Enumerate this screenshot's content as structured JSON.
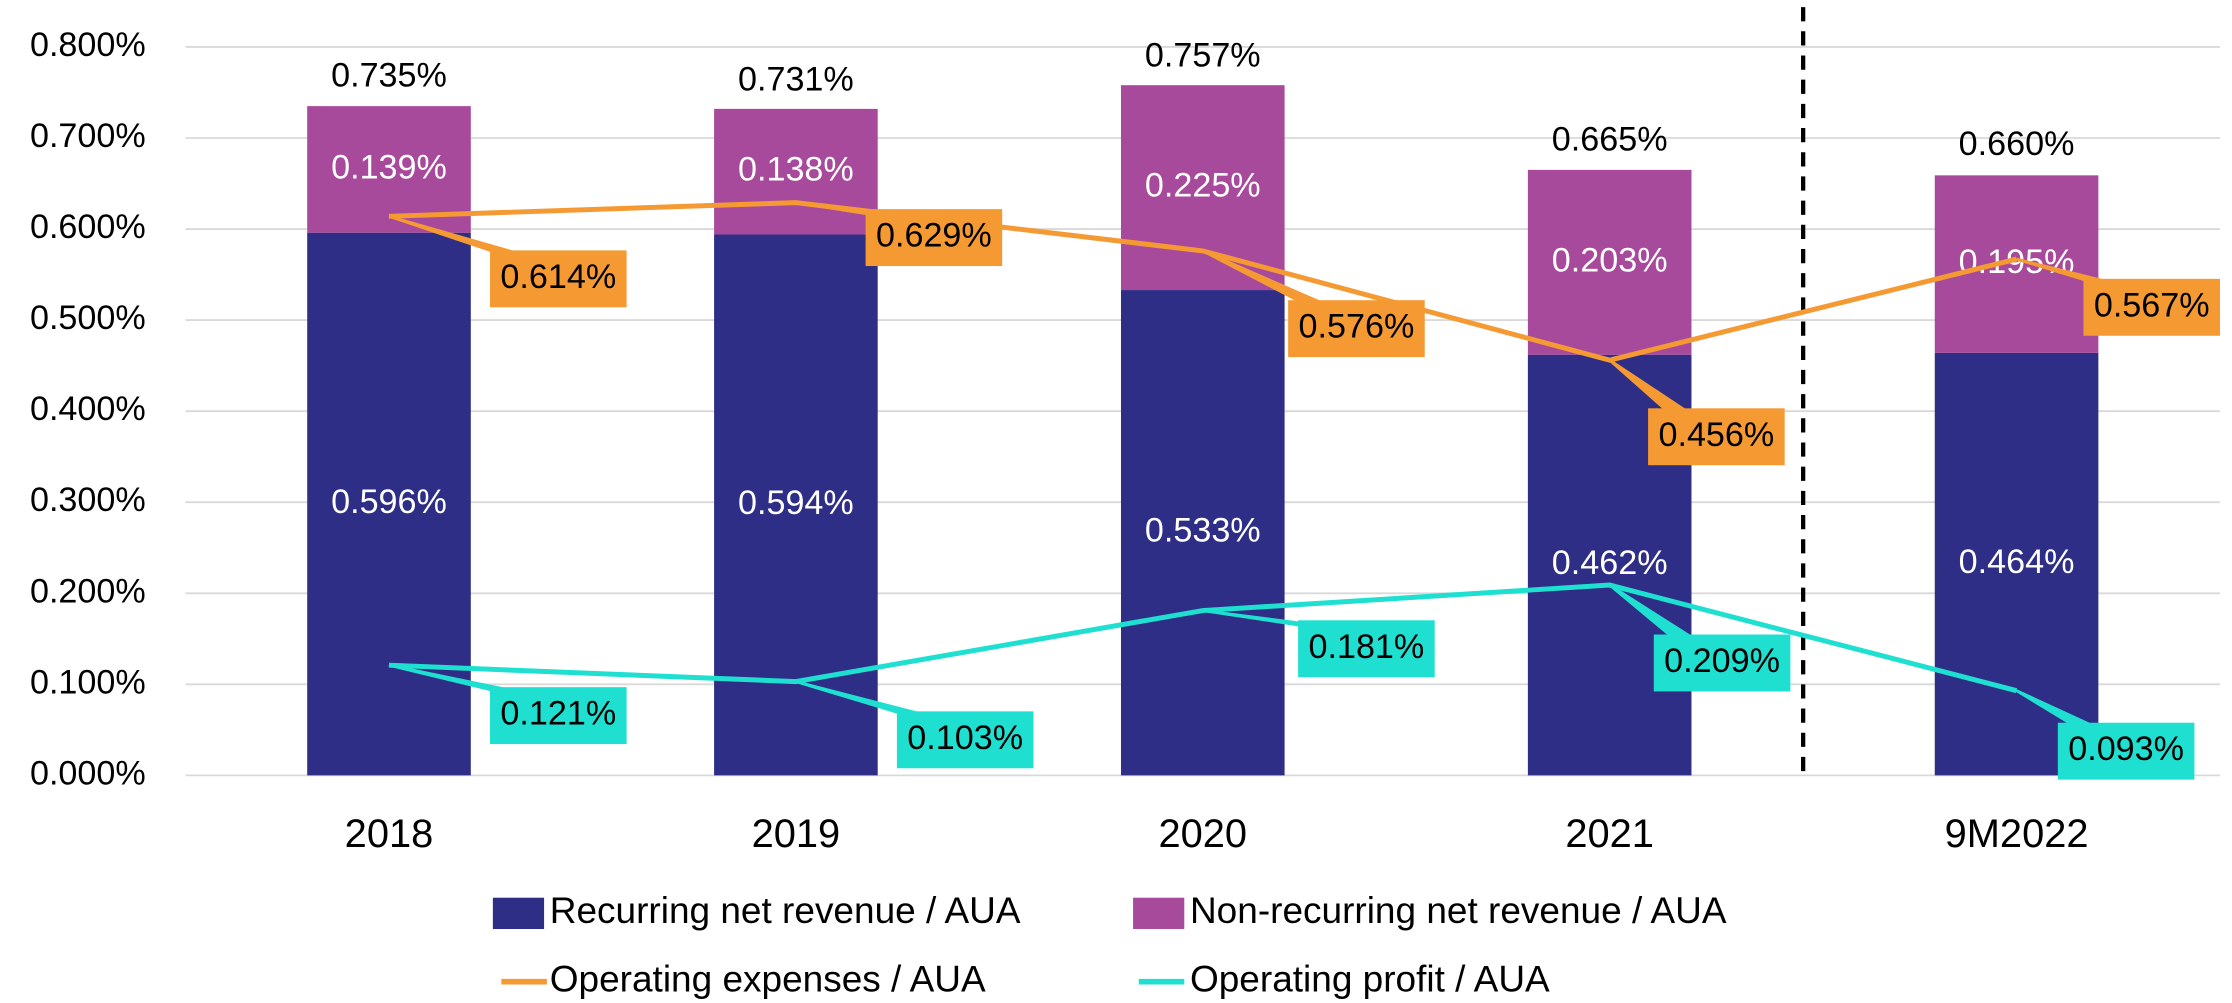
{
  "chart_data": {
    "type": "bar",
    "stacked": true,
    "categories": [
      "2018",
      "2019",
      "2020",
      "2021",
      "9M2022"
    ],
    "ylim": [
      0,
      0.8
    ],
    "yticks": [
      {
        "value": 0,
        "label": "0.000%"
      },
      {
        "value": 0.1,
        "label": "0.100%"
      },
      {
        "value": 0.2,
        "label": "0.200%"
      },
      {
        "value": 0.3,
        "label": "0.300%"
      },
      {
        "value": 0.4,
        "label": "0.400%"
      },
      {
        "value": 0.5,
        "label": "0.500%"
      },
      {
        "value": 0.6,
        "label": "0.600%"
      },
      {
        "value": 0.7,
        "label": "0.700%"
      },
      {
        "value": 0.8,
        "label": "0.800%"
      }
    ],
    "grid": true,
    "series": [
      {
        "name": "Recurring net revenue / AUA",
        "type": "bar",
        "color": "#2e2e87",
        "values": [
          0.596,
          0.594,
          0.533,
          0.462,
          0.464
        ],
        "value_labels": [
          "0.596%",
          "0.594%",
          "0.533%",
          "0.462%",
          "0.464%"
        ]
      },
      {
        "name": "Non-recurring net revenue / AUA",
        "type": "bar",
        "color": "#a84a9b",
        "values": [
          0.139,
          0.138,
          0.225,
          0.203,
          0.195
        ],
        "value_labels": [
          "0.139%",
          "0.138%",
          "0.225%",
          "0.203%",
          "0.195%"
        ]
      },
      {
        "name": "Operating expenses / AUA",
        "type": "line",
        "color": "#f59a33",
        "values": [
          0.614,
          0.629,
          0.576,
          0.456,
          0.567
        ],
        "value_labels": [
          "0.614%",
          "0.629%",
          "0.576%",
          "0.456%",
          "0.567%"
        ]
      },
      {
        "name": "Operating profit / AUA",
        "type": "line",
        "color": "#1fe0d0",
        "values": [
          0.121,
          0.103,
          0.181,
          0.209,
          0.093
        ],
        "value_labels": [
          "0.121%",
          "0.103%",
          "0.181%",
          "0.209%",
          "0.093%"
        ]
      }
    ],
    "totals": {
      "values": [
        0.735,
        0.731,
        0.757,
        0.665,
        0.66
      ],
      "value_labels": [
        "0.735%",
        "0.731%",
        "0.757%",
        "0.665%",
        "0.660%"
      ]
    }
  }
}
